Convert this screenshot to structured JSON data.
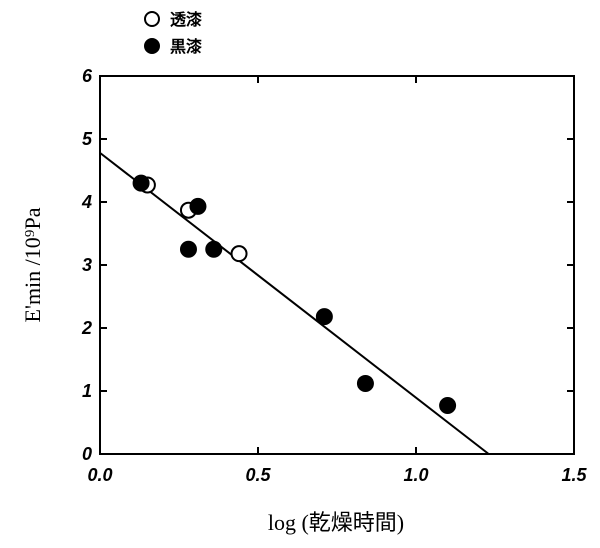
{
  "chart_data": {
    "type": "scatter",
    "xlabel": "log (乾燥時間)",
    "ylabel": "E'min /10⁹Pa",
    "xlim": [
      0.0,
      1.5
    ],
    "ylim": [
      0,
      6
    ],
    "x_ticks": [
      "0.0",
      "0.5",
      "1.0",
      "1.5"
    ],
    "y_ticks": [
      "0",
      "1",
      "2",
      "3",
      "4",
      "5",
      "6"
    ],
    "grid": false,
    "legend_position": "top-left",
    "series": [
      {
        "name": "透漆",
        "marker": "open-circle",
        "points": [
          [
            0.15,
            4.27
          ],
          [
            0.28,
            3.87
          ],
          [
            0.44,
            3.18
          ]
        ]
      },
      {
        "name": "黒漆",
        "marker": "filled-circle",
        "points": [
          [
            0.13,
            4.3
          ],
          [
            0.28,
            3.25
          ],
          [
            0.31,
            3.93
          ],
          [
            0.36,
            3.25
          ],
          [
            0.71,
            2.18
          ],
          [
            0.84,
            1.12
          ],
          [
            1.1,
            0.77
          ]
        ]
      }
    ],
    "fit_line": {
      "from": [
        0.0,
        4.78
      ],
      "to": [
        1.23,
        0.0
      ]
    }
  }
}
